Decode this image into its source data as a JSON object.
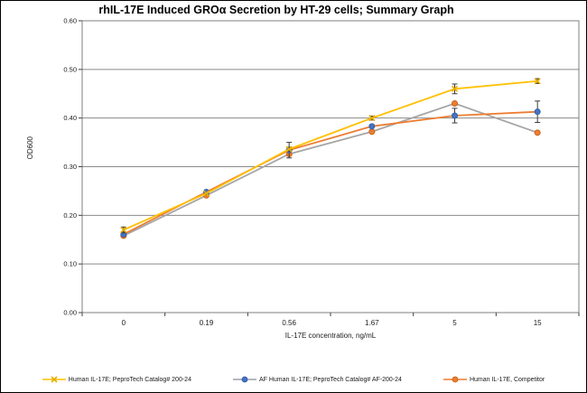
{
  "chart_data": {
    "type": "line",
    "title": "rhIL-17E Induced GROα Secretion by HT-29 cells; Summary Graph",
    "xlabel": "IL-17E concentration, ng/mL",
    "ylabel": "OD600",
    "categories": [
      "0",
      "0.19",
      "0.56",
      "1.67",
      "5",
      "15"
    ],
    "ylim": [
      0,
      0.6
    ],
    "yticks": [
      "0.00",
      "0.10",
      "0.20",
      "0.30",
      "0.40",
      "0.50",
      "0.60"
    ],
    "grid": true,
    "legend_position": "bottom",
    "colors": {
      "gridline": "#8a8a8a",
      "plot_border": "#7f7f7f",
      "error_bar": "#3a3a3a",
      "tick_text": "#1a1a1a"
    },
    "series": [
      {
        "name": "Human IL-17E; PeproTech Catalog# 200-24",
        "line_color": "#FFC000",
        "legend_line_color": "#FFC000",
        "marker": "x",
        "marker_color": "#E8AC00",
        "values": [
          0.17,
          0.245,
          0.336,
          0.4,
          0.46,
          0.476
        ],
        "errors": [
          0.006,
          0,
          0.004,
          0.004,
          0.01,
          0.005
        ]
      },
      {
        "name": "AF Human IL-17E; PeproTech Catalog# AF-200-24",
        "line_color": "#ED7D31",
        "legend_line_color": "#9aa0a8",
        "marker": "circle",
        "marker_color": "#4472C4",
        "marker_stroke": "#2E5C9E",
        "values": [
          0.161,
          0.248,
          0.334,
          0.383,
          0.405,
          0.413
        ],
        "errors": [
          0,
          0,
          0.016,
          0,
          0.015,
          0.022
        ]
      },
      {
        "name": "Human IL-17E, Competitor",
        "line_color": "#A5A5A5",
        "legend_line_color": "#ED7D31",
        "marker": "circle",
        "marker_color": "#ED7D31",
        "marker_stroke": "#C55A11",
        "values": [
          0.158,
          0.241,
          0.326,
          0.372,
          0.43,
          0.37
        ],
        "errors": [
          0,
          0,
          0,
          0,
          0,
          0
        ]
      }
    ]
  }
}
